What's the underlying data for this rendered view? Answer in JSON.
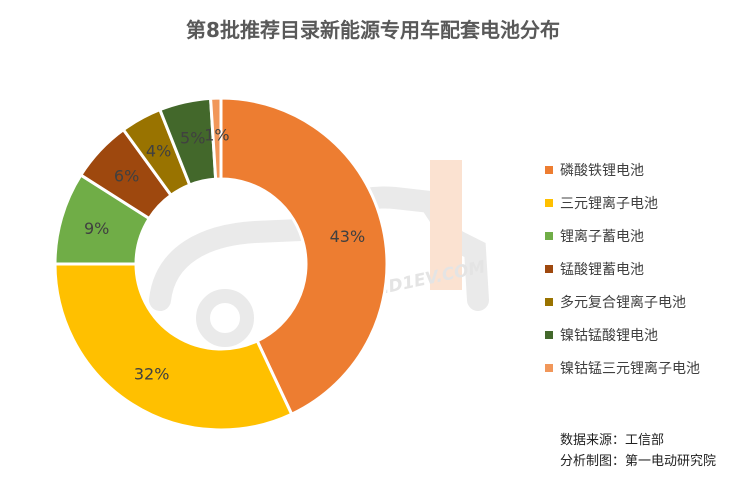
{
  "page": {
    "watermark": "WWW.D1EV.COM",
    "source_line": "数据来源：工信部",
    "maker_line": "分析制图：第一电动研究院"
  },
  "chart_data": {
    "type": "pie",
    "title": "第8批推荐目录新能源专用车配套电池分布",
    "donut": true,
    "legend_position": "right",
    "categories": [
      "磷酸铁锂电池",
      "三元锂离子电池",
      "锂离子蓄电池",
      "锰酸锂蓄电池",
      "多元复合锂离子电池",
      "镍钴锰酸锂电池",
      "镍钴锰三元锂离子电池"
    ],
    "values": [
      43,
      32,
      9,
      6,
      4,
      5,
      1
    ],
    "labels": [
      "43%",
      "32%",
      "9%",
      "6%",
      "4%",
      "5%",
      "1%"
    ],
    "colors": [
      "#ED7D31",
      "#FFC000",
      "#70AD47",
      "#9E480E",
      "#997300",
      "#43682B",
      "#F1975A"
    ]
  }
}
